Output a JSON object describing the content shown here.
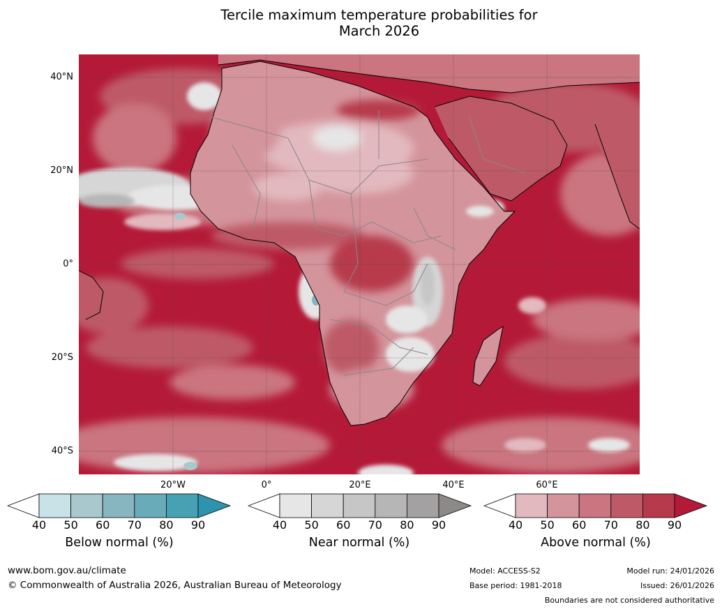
{
  "title_line1": "Tercile maximum temperature probabilities for",
  "title_line2": "March 2026",
  "lat_labels": [
    "40°N",
    "20°N",
    "0°",
    "20°S",
    "40°S"
  ],
  "lon_labels": [
    "20°W",
    "0°",
    "20°E",
    "40°E",
    "60°E"
  ],
  "colorbars": [
    {
      "name": "below",
      "label": "Below normal (%)",
      "ticks": [
        "40",
        "50",
        "60",
        "70",
        "80",
        "90"
      ],
      "colors": [
        "#ffffff",
        "#c9e2e8",
        "#a8c8cd",
        "#88b6c0",
        "#6aabb9",
        "#46a2b3",
        "#2c95ad"
      ]
    },
    {
      "name": "near",
      "label": "Near normal (%)",
      "ticks": [
        "40",
        "50",
        "60",
        "70",
        "80",
        "90"
      ],
      "colors": [
        "#ffffff",
        "#e6e6e6",
        "#d6d6d6",
        "#c6c6c6",
        "#b6b6b6",
        "#a3a1a1",
        "#8d8989"
      ]
    },
    {
      "name": "above",
      "label": "Above normal (%)",
      "ticks": [
        "40",
        "50",
        "60",
        "70",
        "80",
        "90"
      ],
      "colors": [
        "#ffffff",
        "#e2b9be",
        "#d4949c",
        "#ca7580",
        "#be5a68",
        "#b73a4c",
        "#b41a37"
      ]
    }
  ],
  "footer": {
    "website": "www.bom.gov.au/climate",
    "copyright": "© Commonwealth of Australia 2026, Australian Bureau of Meteorology",
    "model": "Model: ACCESS-S2",
    "base_period": "Base period: 1981-2018",
    "model_run": "Model run: 24/01/2026",
    "issued": "Issued: 26/01/2026",
    "disclaimer": "Boundaries are not considered authoritative"
  }
}
